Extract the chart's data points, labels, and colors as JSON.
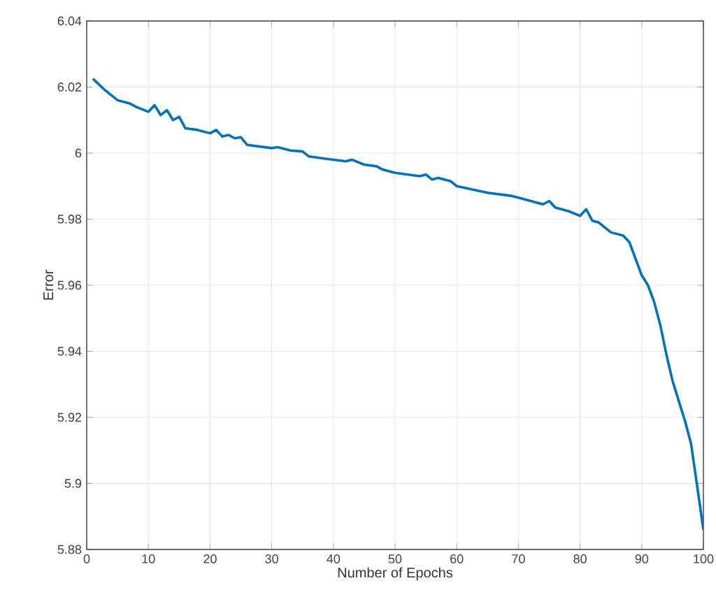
{
  "chart_data": {
    "type": "line",
    "xlabel": "Number of Epochs",
    "ylabel": "Error",
    "xlim": [
      0,
      100
    ],
    "ylim": [
      5.88,
      6.04
    ],
    "xticks": [
      0,
      10,
      20,
      30,
      40,
      50,
      60,
      70,
      80,
      90,
      100
    ],
    "yticks": [
      5.88,
      5.9,
      5.92,
      5.94,
      5.96,
      5.98,
      6,
      6.02,
      6.04
    ],
    "grid": true,
    "marker": "none",
    "line_style": "solid",
    "series": [
      {
        "color": "#0072bd",
        "x": [
          1,
          3,
          5,
          7,
          8,
          10,
          11,
          12,
          13,
          14,
          15,
          16,
          18,
          20,
          21,
          22,
          23,
          24,
          25,
          26,
          30,
          31,
          33,
          35,
          36,
          40,
          42,
          43,
          45,
          47,
          48,
          50,
          54,
          55,
          56,
          57,
          59,
          60,
          65,
          69,
          70,
          74,
          75,
          76,
          78,
          80,
          81,
          82,
          83,
          85,
          87,
          88,
          89,
          90,
          91,
          92,
          93,
          94,
          95,
          96,
          97,
          98,
          99,
          100
        ],
        "values": [
          6.0225,
          6.019,
          6.016,
          6.015,
          6.014,
          6.0125,
          6.0145,
          6.0115,
          6.013,
          6.01,
          6.011,
          6.0075,
          6.007,
          6.006,
          6.007,
          6.005,
          6.0055,
          6.0045,
          6.0048,
          6.0025,
          6.0015,
          6.0018,
          6.0008,
          6.0005,
          5.999,
          5.998,
          5.9975,
          5.998,
          5.9965,
          5.996,
          5.995,
          5.994,
          5.993,
          5.9935,
          5.992,
          5.9925,
          5.9915,
          5.99,
          5.988,
          5.987,
          5.9865,
          5.9845,
          5.9855,
          5.9835,
          5.9825,
          5.981,
          5.983,
          5.9795,
          5.979,
          5.976,
          5.975,
          5.973,
          5.968,
          5.963,
          5.96,
          5.955,
          5.948,
          5.939,
          5.931,
          5.925,
          5.919,
          5.912,
          5.899,
          5.886
        ]
      }
    ]
  }
}
